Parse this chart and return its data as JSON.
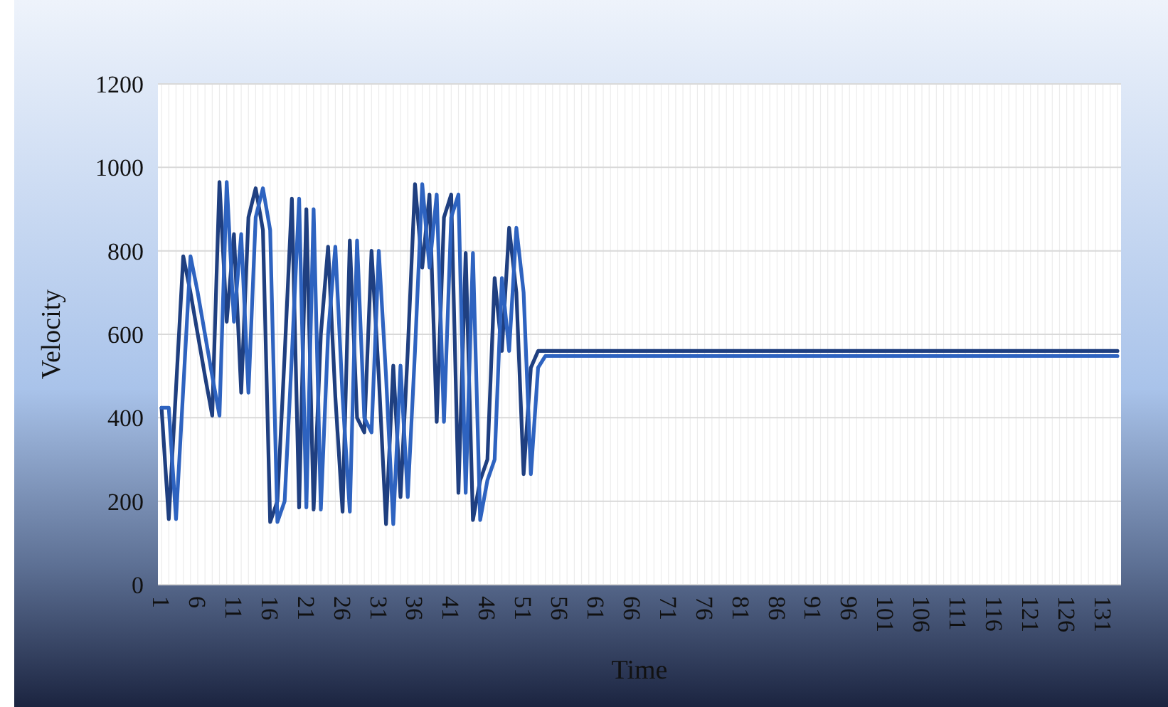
{
  "chart_data": {
    "type": "line",
    "xlabel": "Time",
    "ylabel": "Velocity",
    "categories": [
      "1",
      null,
      null,
      null,
      null,
      "6",
      null,
      null,
      null,
      null,
      "11",
      null,
      null,
      null,
      null,
      "16",
      null,
      null,
      null,
      null,
      "21",
      null,
      null,
      null,
      null,
      "26",
      null,
      null,
      null,
      null,
      "31",
      null,
      null,
      null,
      null,
      "36",
      null,
      null,
      null,
      null,
      "41",
      null,
      null,
      null,
      null,
      "46",
      null,
      null,
      null,
      null,
      "51",
      null,
      null,
      null,
      null,
      "56",
      null,
      null,
      null,
      null,
      "61",
      null,
      null,
      null,
      null,
      "66",
      null,
      null,
      null,
      null,
      "71",
      null,
      null,
      null,
      null,
      "76",
      null,
      null,
      null,
      null,
      "81",
      null,
      null,
      null,
      null,
      "86",
      null,
      null,
      null,
      null,
      "91",
      null,
      null,
      null,
      null,
      "96",
      null,
      null,
      null,
      null,
      "101",
      null,
      null,
      null,
      null,
      "106",
      null,
      null,
      null,
      null,
      "111",
      null,
      null,
      null,
      null,
      "116",
      null,
      null,
      null,
      null,
      "121",
      null,
      null,
      null,
      null,
      "126",
      null,
      null,
      null,
      null,
      "131",
      null,
      null
    ],
    "series": [
      {
        "color": "#1f3f80",
        "values": [
          424,
          157,
          470,
          787,
          700,
          600,
          500,
          405,
          965,
          630,
          840,
          460,
          880,
          950,
          850,
          150,
          200,
          550,
          925,
          185,
          900,
          180,
          600,
          810,
          450,
          175,
          825,
          400,
          365,
          800,
          500,
          145,
          525,
          210,
          560,
          960,
          760,
          935,
          390,
          880,
          935,
          220,
          795,
          155,
          250,
          300,
          735,
          560,
          855,
          700,
          265,
          520,
          560,
          560,
          560,
          560,
          560,
          560,
          560,
          560,
          560,
          560,
          560,
          560,
          560,
          560,
          560,
          560,
          560,
          560,
          560,
          560,
          560,
          560,
          560,
          560,
          560,
          560,
          560,
          560,
          560,
          560,
          560,
          560,
          560,
          560,
          560,
          560,
          560,
          560,
          560,
          560,
          560,
          560,
          560,
          560,
          560,
          560,
          560,
          560,
          560,
          560,
          560,
          560,
          560,
          560,
          560,
          560,
          560,
          560,
          560,
          560,
          560,
          560,
          560,
          560,
          560,
          560,
          560,
          560,
          560,
          560,
          560,
          560,
          560,
          560,
          560,
          560,
          560,
          560,
          560,
          560,
          560
        ]
      },
      {
        "color": "#2e63c0",
        "values": [
          424,
          424,
          157,
          470,
          787,
          700,
          600,
          500,
          405,
          965,
          630,
          840,
          460,
          880,
          950,
          850,
          150,
          200,
          550,
          925,
          185,
          900,
          180,
          600,
          810,
          450,
          175,
          825,
          400,
          365,
          800,
          500,
          145,
          525,
          210,
          560,
          960,
          760,
          935,
          390,
          880,
          935,
          220,
          795,
          155,
          250,
          300,
          735,
          560,
          855,
          700,
          265,
          520,
          548,
          548,
          548,
          548,
          548,
          548,
          548,
          548,
          548,
          548,
          548,
          548,
          548,
          548,
          548,
          548,
          548,
          548,
          548,
          548,
          548,
          548,
          548,
          548,
          548,
          548,
          548,
          548,
          548,
          548,
          548,
          548,
          548,
          548,
          548,
          548,
          548,
          548,
          548,
          548,
          548,
          548,
          548,
          548,
          548,
          548,
          548,
          548,
          548,
          548,
          548,
          548,
          548,
          548,
          548,
          548,
          548,
          548,
          548,
          548,
          548,
          548,
          548,
          548,
          548,
          548,
          548,
          548,
          548,
          548,
          548,
          548,
          548,
          548,
          548,
          548,
          548,
          548,
          548,
          548
        ]
      }
    ],
    "ylim": [
      0,
      1200
    ],
    "yticks": [
      0,
      200,
      400,
      600,
      800,
      1000,
      1200
    ],
    "grid": true,
    "marker": "none",
    "line_style": "solid"
  }
}
